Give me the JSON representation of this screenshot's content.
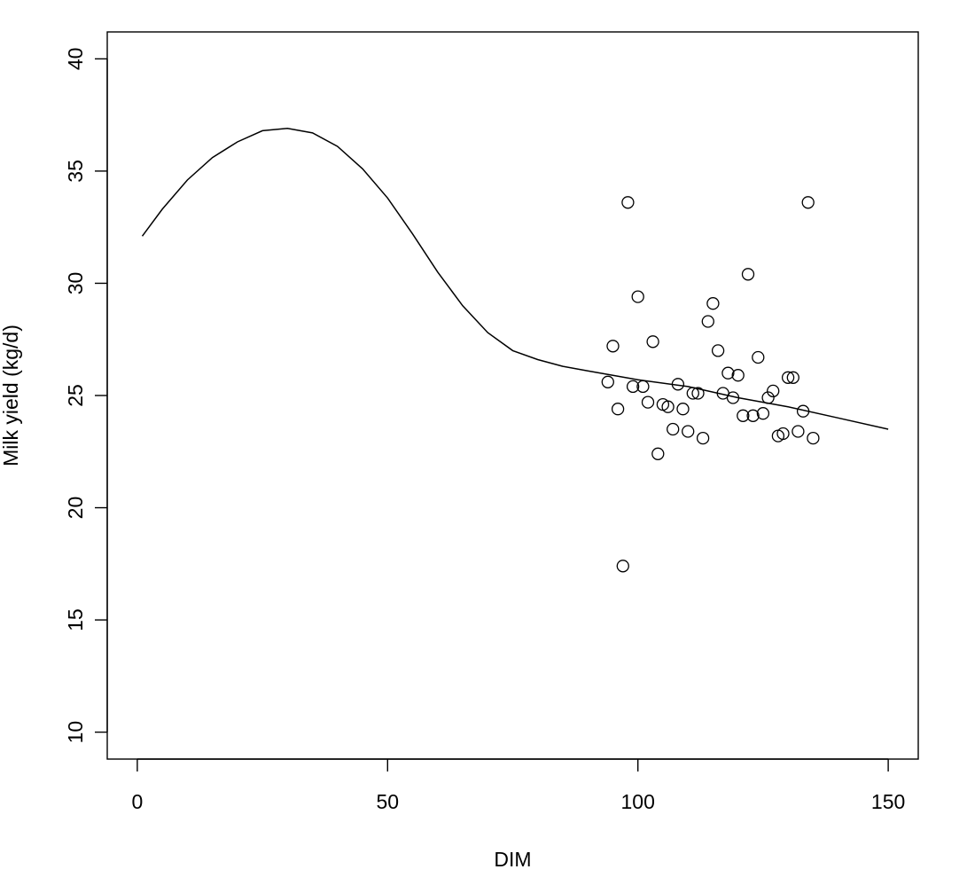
{
  "chart_data": {
    "type": "scatter",
    "title": "",
    "xlabel": "DIM",
    "ylabel": "Milk yield (kg/d)",
    "xlim": [
      -6,
      156
    ],
    "ylim": [
      8.8,
      41.2
    ],
    "x_ticks": [
      0,
      50,
      100,
      150
    ],
    "y_ticks": [
      10,
      15,
      20,
      25,
      30,
      35,
      40
    ],
    "grid": false,
    "legend": "none",
    "series": [
      {
        "kind": "points",
        "marker": "open-circle",
        "points": [
          [
            94.0,
            25.6
          ],
          [
            95.0,
            27.2
          ],
          [
            96.0,
            24.4
          ],
          [
            97.0,
            17.4
          ],
          [
            98.0,
            33.6
          ],
          [
            99.0,
            25.4
          ],
          [
            100.0,
            29.4
          ],
          [
            101.0,
            25.4
          ],
          [
            102.0,
            24.7
          ],
          [
            103.0,
            27.4
          ],
          [
            104.0,
            22.4
          ],
          [
            105.0,
            24.6
          ],
          [
            106.0,
            24.5
          ],
          [
            107.0,
            23.5
          ],
          [
            108.0,
            25.5
          ],
          [
            109.0,
            24.4
          ],
          [
            110.0,
            23.4
          ],
          [
            111.0,
            25.1
          ],
          [
            112.0,
            25.1
          ],
          [
            113.0,
            23.1
          ],
          [
            114.0,
            28.3
          ],
          [
            115.0,
            29.1
          ],
          [
            116.0,
            27.0
          ],
          [
            117.0,
            25.1
          ],
          [
            118.0,
            26.0
          ],
          [
            119.0,
            24.9
          ],
          [
            120.0,
            25.9
          ],
          [
            121.0,
            24.1
          ],
          [
            122.0,
            30.4
          ],
          [
            123.0,
            24.1
          ],
          [
            124.0,
            26.7
          ],
          [
            125.0,
            24.2
          ],
          [
            126.0,
            24.9
          ],
          [
            127.0,
            25.2
          ],
          [
            128.0,
            23.2
          ],
          [
            129.0,
            23.3
          ],
          [
            130.0,
            25.8
          ],
          [
            131.0,
            25.8
          ],
          [
            132.0,
            23.4
          ],
          [
            133.0,
            24.3
          ],
          [
            134.0,
            33.6
          ],
          [
            135.0,
            23.1
          ]
        ]
      },
      {
        "kind": "line",
        "points": [
          [
            1,
            32.1
          ],
          [
            5,
            33.3
          ],
          [
            10,
            34.6
          ],
          [
            15,
            35.6
          ],
          [
            20,
            36.3
          ],
          [
            25,
            36.8
          ],
          [
            30,
            36.9
          ],
          [
            35,
            36.7
          ],
          [
            40,
            36.1
          ],
          [
            45,
            35.1
          ],
          [
            50,
            33.8
          ],
          [
            55,
            32.2
          ],
          [
            60,
            30.5
          ],
          [
            65,
            29.0
          ],
          [
            70,
            27.8
          ],
          [
            75,
            27.0
          ],
          [
            80,
            26.6
          ],
          [
            85,
            26.3
          ],
          [
            90,
            26.1
          ],
          [
            95,
            25.9
          ],
          [
            100,
            25.7
          ],
          [
            110,
            25.4
          ],
          [
            120,
            24.9
          ],
          [
            130,
            24.5
          ],
          [
            140,
            24.0
          ],
          [
            150,
            23.5
          ]
        ]
      }
    ]
  }
}
